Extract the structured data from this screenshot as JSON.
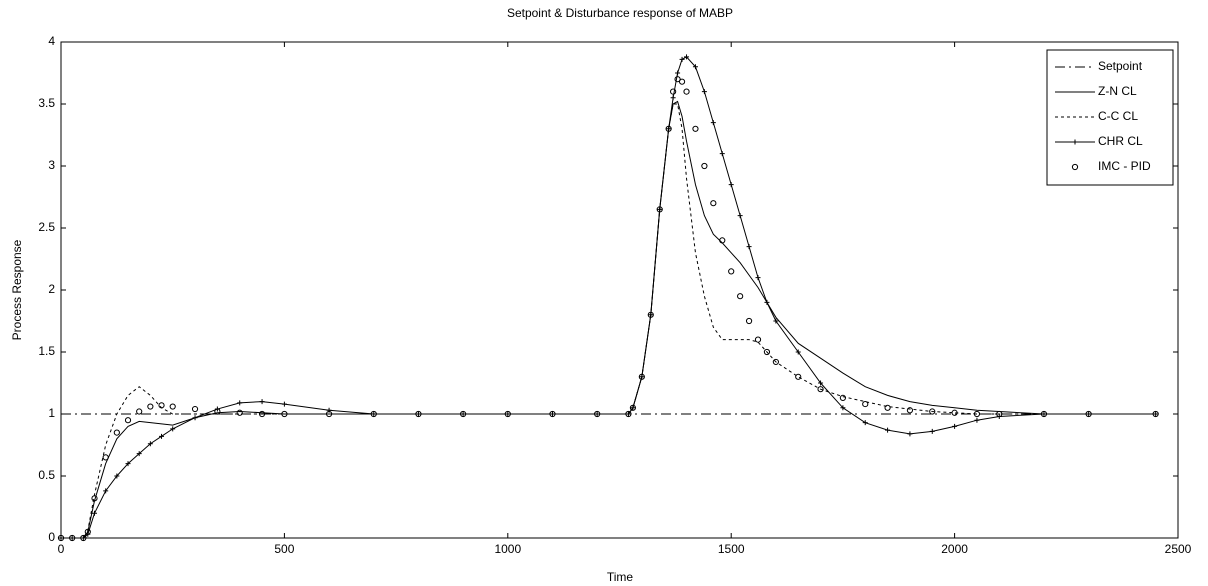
{
  "chart_data": {
    "type": "line",
    "title": "Setpoint & Disturbance response of MABP",
    "x_label": "Time",
    "y_label": "Process Response",
    "x": [
      0,
      25,
      50,
      60,
      75,
      100,
      125,
      150,
      175,
      200,
      225,
      250,
      300,
      350,
      400,
      450,
      500,
      600,
      700,
      800,
      900,
      1000,
      1100,
      1200,
      1270,
      1280,
      1300,
      1320,
      1340,
      1360,
      1370,
      1380,
      1390,
      1400,
      1420,
      1440,
      1460,
      1480,
      1500,
      1520,
      1540,
      1560,
      1580,
      1600,
      1650,
      1700,
      1750,
      1800,
      1850,
      1900,
      1950,
      2000,
      2050,
      2100,
      2200,
      2300,
      2450
    ],
    "series": [
      {
        "name": "Setpoint",
        "color": "#000000",
        "line_style": "dash-dot",
        "marker": "none",
        "values": [
          1,
          1,
          1,
          1,
          1,
          1,
          1,
          1,
          1,
          1,
          1,
          1,
          1,
          1,
          1,
          1,
          1,
          1,
          1,
          1,
          1,
          1,
          1,
          1,
          1,
          1,
          1,
          1,
          1,
          1,
          1,
          1,
          1,
          1,
          1,
          1,
          1,
          1,
          1,
          1,
          1,
          1,
          1,
          1,
          1,
          1,
          1,
          1,
          1,
          1,
          1,
          1,
          1,
          1,
          1,
          1,
          1
        ]
      },
      {
        "name": "Z-N CL",
        "color": "#000000",
        "line_style": "solid",
        "marker": "none",
        "values": [
          0,
          0,
          0,
          0.05,
          0.3,
          0.6,
          0.8,
          0.9,
          0.94,
          0.93,
          0.92,
          0.91,
          0.97,
          1.01,
          1.02,
          1.01,
          1,
          1,
          1,
          1,
          1,
          1,
          1,
          1,
          1,
          1.05,
          1.3,
          1.8,
          2.65,
          3.3,
          3.5,
          3.52,
          3.4,
          3.2,
          2.85,
          2.6,
          2.45,
          2.38,
          2.3,
          2.22,
          2.12,
          2.02,
          1.9,
          1.78,
          1.57,
          1.45,
          1.33,
          1.22,
          1.15,
          1.1,
          1.07,
          1.05,
          1.03,
          1.02,
          1,
          1,
          1
        ]
      },
      {
        "name": "C-C CL",
        "color": "#000000",
        "line_style": "dashed",
        "marker": "none",
        "values": [
          0,
          0,
          0,
          0.06,
          0.35,
          0.75,
          1,
          1.15,
          1.22,
          1.15,
          1.05,
          1,
          1,
          1,
          1,
          1,
          1,
          1,
          1,
          1,
          1,
          1,
          1,
          1,
          1,
          1.05,
          1.3,
          1.8,
          2.65,
          3.3,
          3.5,
          3.5,
          3.3,
          2.9,
          2.3,
          1.95,
          1.7,
          1.6,
          1.6,
          1.6,
          1.6,
          1.58,
          1.5,
          1.42,
          1.3,
          1.2,
          1.14,
          1.1,
          1.06,
          1.04,
          1.02,
          1.01,
          1,
          1,
          1,
          1,
          1
        ]
      },
      {
        "name": "CHR CL",
        "color": "#000000",
        "line_style": "solid",
        "marker": "plus",
        "values": [
          0,
          0,
          0,
          0.03,
          0.2,
          0.38,
          0.5,
          0.6,
          0.68,
          0.76,
          0.82,
          0.88,
          0.97,
          1.04,
          1.09,
          1.1,
          1.08,
          1.03,
          1,
          1,
          1,
          1,
          1,
          1,
          1,
          1.05,
          1.3,
          1.8,
          2.65,
          3.3,
          3.55,
          3.75,
          3.86,
          3.88,
          3.8,
          3.6,
          3.35,
          3.1,
          2.85,
          2.6,
          2.35,
          2.1,
          1.9,
          1.75,
          1.5,
          1.25,
          1.05,
          0.93,
          0.87,
          0.84,
          0.86,
          0.9,
          0.95,
          0.98,
          1,
          1,
          1
        ]
      },
      {
        "name": "IMC - PID",
        "color": "#000000",
        "line_style": "none",
        "marker": "circle",
        "values": [
          0,
          0,
          0,
          0.05,
          0.32,
          0.65,
          0.85,
          0.95,
          1.02,
          1.06,
          1.07,
          1.06,
          1.04,
          1.02,
          1.01,
          1,
          1,
          1,
          1,
          1,
          1,
          1,
          1,
          1,
          1,
          1.05,
          1.3,
          1.8,
          2.65,
          3.3,
          3.6,
          3.7,
          3.68,
          3.6,
          3.3,
          3,
          2.7,
          2.4,
          2.15,
          1.95,
          1.75,
          1.6,
          1.5,
          1.42,
          1.3,
          1.2,
          1.13,
          1.08,
          1.05,
          1.03,
          1.02,
          1.01,
          1,
          1,
          1,
          1,
          1
        ]
      }
    ],
    "xlim": [
      0,
      2500
    ],
    "xticks": [
      0,
      500,
      1000,
      1500,
      2000,
      2500
    ],
    "ylim": [
      0,
      4
    ],
    "yticks": [
      0,
      0.5,
      1,
      1.5,
      2,
      2.5,
      3,
      3.5,
      4
    ],
    "grid": false,
    "legend": "upper right"
  }
}
